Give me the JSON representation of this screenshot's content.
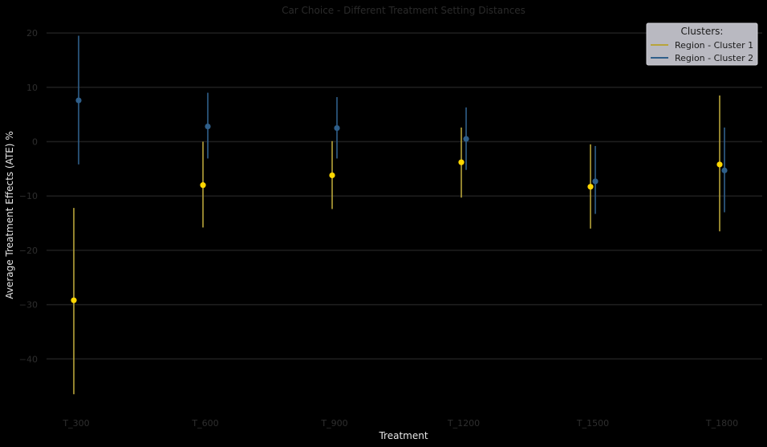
{
  "chart_data": {
    "type": "scatter",
    "title": "Car Choice - Different Treatment Setting Distances",
    "xlabel": "Treatment",
    "ylabel": "Average Treatment Effects (ATE) %",
    "categories": [
      "T_300",
      "T_600",
      "T_900",
      "T_1200",
      "T_1500",
      "T_1800"
    ],
    "ylim": [
      -49,
      21
    ],
    "yticks": [
      20,
      10,
      0,
      -10,
      -20,
      -30,
      -40
    ],
    "ytick_labels": [
      "20",
      "10",
      "0",
      "−10",
      "−20",
      "−30",
      "−40"
    ],
    "grid": true,
    "legend": {
      "title": "Clusters:",
      "placement": "top-right"
    },
    "series": [
      {
        "name": "Region - Cluster 1",
        "color": "#ffd700",
        "line_color": "#b8a43a",
        "values": [
          -29.2,
          -8.0,
          -6.2,
          -3.8,
          -8.3,
          -4.2
        ],
        "lower": [
          -46.5,
          -15.8,
          -12.4,
          -10.3,
          -16.0,
          -16.5
        ],
        "upper": [
          -12.2,
          0.0,
          0.1,
          2.6,
          -0.5,
          8.5
        ]
      },
      {
        "name": "Region - Cluster 2",
        "color": "#2f5f8a",
        "line_color": "#2f5f8a",
        "values": [
          7.6,
          2.8,
          2.5,
          0.5,
          -7.3,
          -5.3
        ],
        "lower": [
          -4.2,
          -3.1,
          -3.1,
          -5.2,
          -13.3,
          -13.0
        ],
        "upper": [
          19.5,
          9.0,
          8.2,
          6.3,
          -0.8,
          2.6
        ]
      }
    ]
  }
}
